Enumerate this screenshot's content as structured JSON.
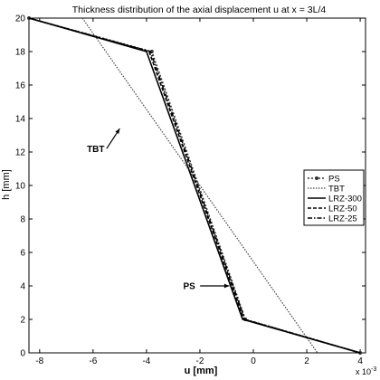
{
  "chart_data": {
    "type": "line",
    "title": "Thickness distribution of the axial displacement u at x = 3L/4",
    "xlabel": "u [mm]",
    "ylabel": "h [mm]",
    "x_exponent": "x 10",
    "x_exponent_power": "-3",
    "xlim": [
      -8.4,
      4.2
    ],
    "ylim": [
      0,
      20
    ],
    "x_ticks": [
      -8,
      -6,
      -4,
      -2,
      0,
      2,
      4
    ],
    "x_tick_labels": [
      "-8",
      "-6",
      "-4",
      "-2",
      "0",
      "2",
      "4"
    ],
    "y_ticks": [
      0,
      2,
      4,
      6,
      8,
      10,
      12,
      14,
      16,
      18,
      20
    ],
    "y_tick_labels": [
      "0",
      "2",
      "4",
      "6",
      "8",
      "10",
      "12",
      "14",
      "16",
      "18",
      "20"
    ],
    "grid": false,
    "legend_position": "right",
    "series": [
      {
        "name": "PS",
        "style": "ps",
        "color": "#333333",
        "x": [
          -8.4,
          -3.8,
          -0.3,
          4.0
        ],
        "y": [
          20,
          18,
          2,
          0
        ]
      },
      {
        "name": "TBT",
        "style": "tbt",
        "color": "#444444",
        "x": [
          -6.4,
          2.4
        ],
        "y": [
          20,
          0
        ]
      },
      {
        "name": "LRZ-300",
        "style": "solid",
        "color": "#000000",
        "x": [
          -8.4,
          -4.0,
          -0.4,
          4.0
        ],
        "y": [
          20,
          18,
          2,
          0
        ]
      },
      {
        "name": "LRZ-50",
        "style": "dashed",
        "color": "#000000",
        "x": [
          -8.4,
          -3.9,
          -0.35,
          4.0
        ],
        "y": [
          20,
          18,
          2,
          0
        ]
      },
      {
        "name": "LRZ-25",
        "style": "dashdot",
        "color": "#000000",
        "x": [
          -8.4,
          -3.85,
          -0.32,
          4.0
        ],
        "y": [
          20,
          18,
          2,
          0
        ]
      }
    ],
    "annotations": [
      {
        "text": "TBT",
        "text_x": -5.9,
        "text_y": 12.2,
        "arrow_x": -5.0,
        "arrow_y": 13.4
      },
      {
        "text": "PS",
        "text_x": -2.4,
        "text_y": 4.0,
        "arrow_x": -0.9,
        "arrow_y": 4.0
      }
    ]
  }
}
